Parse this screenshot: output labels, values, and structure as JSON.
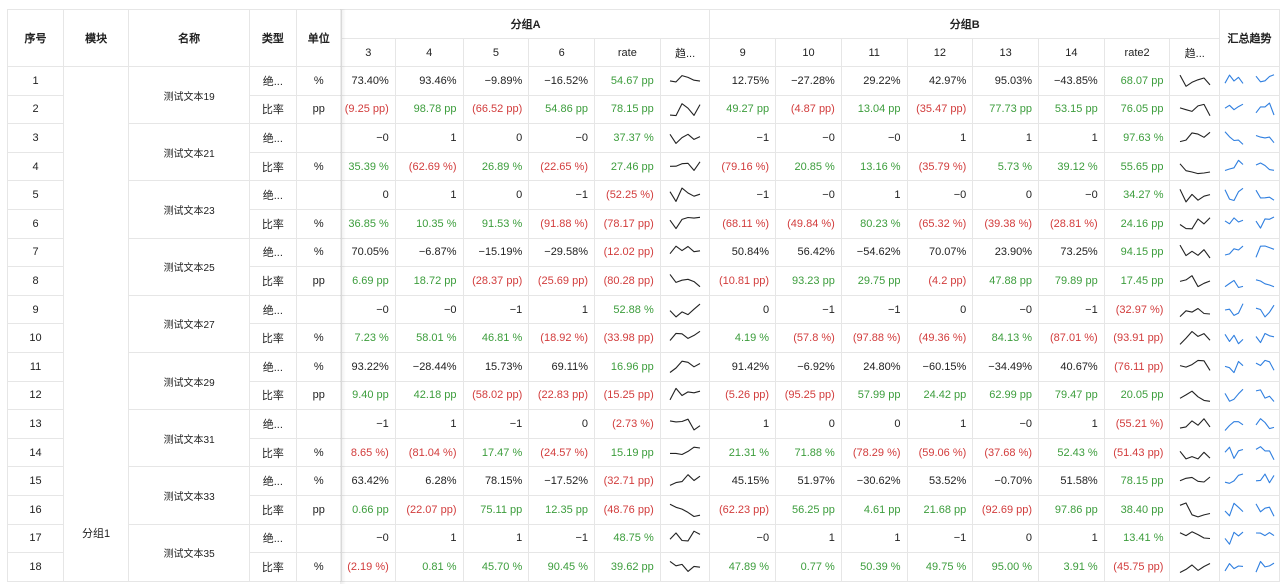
{
  "headers": {
    "seq": "序号",
    "module": "模块",
    "name": "名称",
    "type": "类型",
    "unit": "单位",
    "groupA": "分组A",
    "groupB": "分组B",
    "summary": "汇总趋势",
    "colsA": [
      "3",
      "4",
      "5",
      "6",
      "rate",
      "趋..."
    ],
    "colsB": [
      "9",
      "10",
      "11",
      "12",
      "13",
      "14",
      "rate2",
      "趋..."
    ]
  },
  "module_label": "分组1",
  "colors": {
    "positive": "#3c9d3c",
    "negative": "#d23c3c",
    "spark": "#222222",
    "summary_spark": "#2f7fe0"
  },
  "groups": [
    {
      "name": "测试文本19",
      "rows": [
        {
          "seq": "1",
          "type": "绝...",
          "unit": "%",
          "a": [
            "73.40%",
            "93.46%",
            "−9.89%",
            "−16.52%"
          ],
          "rate": "54.67",
          "rate_unit": "pp",
          "rate_sign": "pos",
          "b": [
            "12.75%",
            "−27.28%",
            "29.22%",
            "42.97%",
            "95.03%",
            "−43.85%"
          ],
          "rate2": "68.07",
          "rate2_unit": "pp",
          "rate2_sign": "pos"
        },
        {
          "seq": "2",
          "type": "比率",
          "unit": "pp",
          "a": [
            "(9.25 pp)",
            "98.78 pp",
            "(66.52 pp)",
            "54.86 pp"
          ],
          "rate": "78.15",
          "rate_unit": "pp",
          "rate_sign": "pos",
          "b": [
            "49.27 pp",
            "(4.87 pp)",
            "13.04 pp",
            "(35.47 pp)",
            "77.73 pp",
            "53.15 pp"
          ],
          "rate2": "76.05",
          "rate2_unit": "pp",
          "rate2_sign": "pos"
        }
      ]
    },
    {
      "name": "测试文本21",
      "rows": [
        {
          "seq": "3",
          "type": "绝...",
          "unit": "",
          "a": [
            "−0",
            "1",
            "0",
            "−0"
          ],
          "rate": "37.37",
          "rate_unit": "%",
          "rate_sign": "pos",
          "b": [
            "−1",
            "−0",
            "−0",
            "1",
            "1",
            "1"
          ],
          "rate2": "97.63",
          "rate2_unit": "%",
          "rate2_sign": "pos"
        },
        {
          "seq": "4",
          "type": "比率",
          "unit": "%",
          "a": [
            "35.39 %",
            "(62.69 %)",
            "26.89 %",
            "(22.65 %)"
          ],
          "rate": "27.46",
          "rate_unit": "pp",
          "rate_sign": "pos",
          "b": [
            "(79.16 %)",
            "20.85 %",
            "13.16 %",
            "(35.79 %)",
            "5.73 %",
            "39.12 %"
          ],
          "rate2": "55.65",
          "rate2_unit": "pp",
          "rate2_sign": "pos"
        }
      ]
    },
    {
      "name": "测试文本23",
      "rows": [
        {
          "seq": "5",
          "type": "绝...",
          "unit": "",
          "a": [
            "0",
            "1",
            "0",
            "−1"
          ],
          "rate": "(52.25",
          "rate_unit": "%)",
          "rate_sign": "neg",
          "b": [
            "−1",
            "−0",
            "1",
            "−0",
            "0",
            "−0"
          ],
          "rate2": "34.27",
          "rate2_unit": "%",
          "rate2_sign": "pos"
        },
        {
          "seq": "6",
          "type": "比率",
          "unit": "%",
          "a": [
            "36.85 %",
            "10.35 %",
            "91.53 %",
            "(91.88 %)"
          ],
          "rate": "(78.17",
          "rate_unit": "pp)",
          "rate_sign": "neg",
          "b": [
            "(68.11 %)",
            "(49.84 %)",
            "80.23 %",
            "(65.32 %)",
            "(39.38 %)",
            "(28.81 %)"
          ],
          "rate2": "24.16",
          "rate2_unit": "pp",
          "rate2_sign": "pos"
        }
      ]
    },
    {
      "name": "测试文本25",
      "rows": [
        {
          "seq": "7",
          "type": "绝...",
          "unit": "%",
          "a": [
            "70.05%",
            "−6.87%",
            "−15.19%",
            "−29.58%"
          ],
          "rate": "(12.02",
          "rate_unit": "pp)",
          "rate_sign": "neg",
          "b": [
            "50.84%",
            "56.42%",
            "−54.62%",
            "70.07%",
            "23.90%",
            "73.25%"
          ],
          "rate2": "94.15",
          "rate2_unit": "pp",
          "rate2_sign": "pos"
        },
        {
          "seq": "8",
          "type": "比率",
          "unit": "pp",
          "a": [
            "6.69 pp",
            "18.72 pp",
            "(28.37 pp)",
            "(25.69 pp)"
          ],
          "rate": "(80.28",
          "rate_unit": "pp)",
          "rate_sign": "neg",
          "b": [
            "(10.81 pp)",
            "93.23 pp",
            "29.75 pp",
            "(4.2 pp)",
            "47.88 pp",
            "79.89 pp"
          ],
          "rate2": "17.45",
          "rate2_unit": "pp",
          "rate2_sign": "pos"
        }
      ]
    },
    {
      "name": "测试文本27",
      "rows": [
        {
          "seq": "9",
          "type": "绝...",
          "unit": "",
          "a": [
            "−0",
            "−0",
            "−1",
            "1"
          ],
          "rate": "52.88",
          "rate_unit": "%",
          "rate_sign": "pos",
          "b": [
            "0",
            "−1",
            "−1",
            "0",
            "−0",
            "−1"
          ],
          "rate2": "(32.97",
          "rate2_unit": "%)",
          "rate2_sign": "neg"
        },
        {
          "seq": "10",
          "type": "比率",
          "unit": "%",
          "a": [
            "7.23 %",
            "58.01 %",
            "46.81 %",
            "(18.92 %)"
          ],
          "rate": "(33.98",
          "rate_unit": "pp)",
          "rate_sign": "neg",
          "b": [
            "4.19 %",
            "(57.8 %)",
            "(97.88 %)",
            "(49.36 %)",
            "84.13 %",
            "(87.01 %)"
          ],
          "rate2": "(93.91",
          "rate2_unit": "pp)",
          "rate2_sign": "neg"
        }
      ]
    },
    {
      "name": "测试文本29",
      "rows": [
        {
          "seq": "11",
          "type": "绝...",
          "unit": "%",
          "a": [
            "93.22%",
            "−28.44%",
            "15.73%",
            "69.11%"
          ],
          "rate": "16.96",
          "rate_unit": "pp",
          "rate_sign": "pos",
          "b": [
            "91.42%",
            "−6.92%",
            "24.80%",
            "−60.15%",
            "−34.49%",
            "40.67%"
          ],
          "rate2": "(76.11",
          "rate2_unit": "pp)",
          "rate2_sign": "neg"
        },
        {
          "seq": "12",
          "type": "比率",
          "unit": "pp",
          "a": [
            "9.40 pp",
            "42.18 pp",
            "(58.02 pp)",
            "(22.83 pp)"
          ],
          "rate": "(15.25",
          "rate_unit": "pp)",
          "rate_sign": "neg",
          "b": [
            "(5.26 pp)",
            "(95.25 pp)",
            "57.99 pp",
            "24.42 pp",
            "62.99 pp",
            "79.47 pp"
          ],
          "rate2": "20.05",
          "rate2_unit": "pp",
          "rate2_sign": "pos"
        }
      ]
    },
    {
      "name": "测试文本31",
      "rows": [
        {
          "seq": "13",
          "type": "绝...",
          "unit": "",
          "a": [
            "−1",
            "1",
            "−1",
            "0"
          ],
          "rate": "(2.73",
          "rate_unit": "%)",
          "rate_sign": "neg",
          "b": [
            "1",
            "0",
            "0",
            "1",
            "−0",
            "1"
          ],
          "rate2": "(55.21",
          "rate2_unit": "%)",
          "rate2_sign": "neg"
        },
        {
          "seq": "14",
          "type": "比率",
          "unit": "%",
          "a": [
            "8.65 %)",
            "(81.04 %)",
            "17.47 %",
            "(24.57 %)"
          ],
          "rate": "15.19",
          "rate_unit": "pp",
          "rate_sign": "pos",
          "b": [
            "21.31 %",
            "71.88 %",
            "(78.29 %)",
            "(59.06 %)",
            "(37.68 %)",
            "52.43 %"
          ],
          "rate2": "(51.43",
          "rate2_unit": "pp)",
          "rate2_sign": "neg"
        }
      ]
    },
    {
      "name": "测试文本33",
      "rows": [
        {
          "seq": "15",
          "type": "绝...",
          "unit": "%",
          "a": [
            "63.42%",
            "6.28%",
            "78.15%",
            "−17.52%"
          ],
          "rate": "(32.71",
          "rate_unit": "pp)",
          "rate_sign": "neg",
          "b": [
            "45.15%",
            "51.97%",
            "−30.62%",
            "53.52%",
            "−0.70%",
            "51.58%"
          ],
          "rate2": "78.15",
          "rate2_unit": "pp",
          "rate2_sign": "pos"
        },
        {
          "seq": "16",
          "type": "比率",
          "unit": "pp",
          "a": [
            "0.66 pp",
            "(22.07 pp)",
            "75.11 pp",
            "12.35 pp"
          ],
          "rate": "(48.76",
          "rate_unit": "pp)",
          "rate_sign": "neg",
          "b": [
            "(62.23 pp)",
            "56.25 pp",
            "4.61 pp",
            "21.68 pp",
            "(92.69 pp)",
            "97.86 pp"
          ],
          "rate2": "38.40",
          "rate2_unit": "pp",
          "rate2_sign": "pos"
        }
      ]
    },
    {
      "name": "测试文本35",
      "rows": [
        {
          "seq": "17",
          "type": "绝...",
          "unit": "",
          "a": [
            "−0",
            "1",
            "1",
            "−1"
          ],
          "rate": "48.75",
          "rate_unit": "%",
          "rate_sign": "pos",
          "b": [
            "−0",
            "1",
            "1",
            "−1",
            "0",
            "1"
          ],
          "rate2": "13.41",
          "rate2_unit": "%",
          "rate2_sign": "pos"
        },
        {
          "seq": "18",
          "type": "比率",
          "unit": "%",
          "a": [
            "(2.19 %)",
            "0.81 %",
            "45.70 %",
            "90.45 %"
          ],
          "rate": "39.62",
          "rate_unit": "pp",
          "rate_sign": "pos",
          "b": [
            "47.89 %",
            "0.77 %",
            "50.39 %",
            "49.75 %",
            "95.00 %",
            "3.91 %"
          ],
          "rate2": "(45.75",
          "rate2_unit": "pp)",
          "rate2_sign": "neg"
        }
      ]
    }
  ]
}
